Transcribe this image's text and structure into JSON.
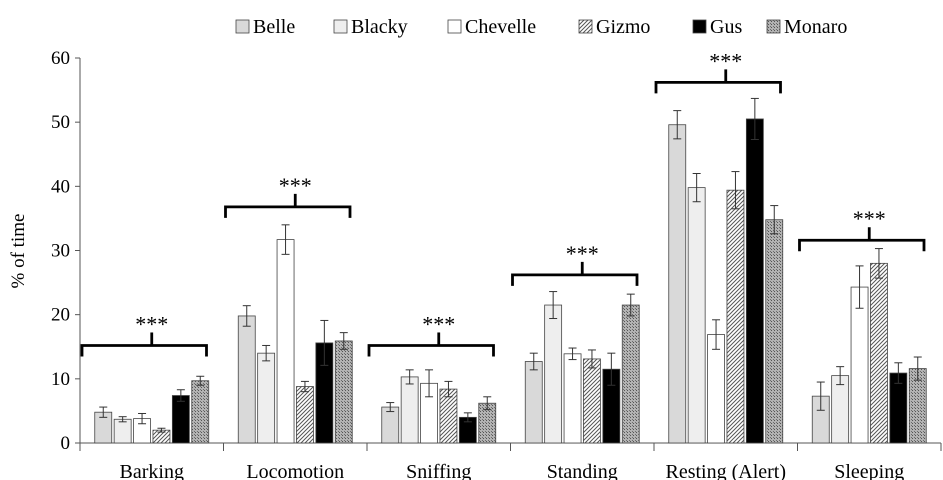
{
  "chart_data": {
    "type": "bar",
    "xlabel": "",
    "ylabel": "% of time",
    "ylim": [
      0,
      60
    ],
    "yticks": [
      0,
      10,
      20,
      30,
      40,
      50,
      60
    ],
    "grid": false,
    "legend_position": "top",
    "categories": [
      "Barking",
      "Locomotion",
      "Sniffing",
      "Standing",
      "Resting (Alert)",
      "Sleeping"
    ],
    "series": [
      {
        "name": "Belle",
        "pattern": "light-gray",
        "color": "#d9d9d9",
        "values": [
          4.8,
          19.8,
          5.6,
          12.7,
          49.6,
          7.3
        ],
        "errors": [
          0.8,
          1.6,
          0.7,
          1.3,
          2.2,
          2.2
        ]
      },
      {
        "name": "Blacky",
        "pattern": "lighter-gray",
        "color": "#eeeeee",
        "values": [
          3.7,
          14.0,
          10.3,
          21.5,
          39.8,
          10.5
        ],
        "errors": [
          0.4,
          1.2,
          1.1,
          2.1,
          2.2,
          1.4
        ]
      },
      {
        "name": "Chevelle",
        "pattern": "white",
        "color": "#ffffff",
        "values": [
          3.8,
          31.7,
          9.3,
          13.9,
          16.9,
          24.3
        ],
        "errors": [
          0.8,
          2.3,
          2.1,
          0.9,
          2.3,
          3.3
        ]
      },
      {
        "name": "Gizmo",
        "pattern": "diagonal-hatch",
        "color": "#bdbdbd",
        "values": [
          2.0,
          8.8,
          8.4,
          13.1,
          39.4,
          28.0
        ],
        "errors": [
          0.3,
          0.8,
          1.2,
          1.4,
          2.9,
          2.3
        ]
      },
      {
        "name": "Gus",
        "pattern": "black",
        "color": "#000000",
        "values": [
          7.4,
          15.6,
          4.0,
          11.5,
          50.5,
          10.9
        ],
        "errors": [
          0.9,
          3.5,
          0.7,
          2.5,
          3.2,
          1.6
        ]
      },
      {
        "name": "Monaro",
        "pattern": "dotted",
        "color": "#9e9e9e",
        "values": [
          9.7,
          15.9,
          6.2,
          21.5,
          34.8,
          11.6
        ],
        "errors": [
          0.7,
          1.3,
          1.0,
          1.7,
          2.2,
          1.8
        ]
      }
    ],
    "significance": [
      {
        "label": "***",
        "bracket_level": 15.2
      },
      {
        "label": "***",
        "bracket_level": 36.8
      },
      {
        "label": "***",
        "bracket_level": 15.2
      },
      {
        "label": "***",
        "bracket_level": 26.2
      },
      {
        "label": "***",
        "bracket_level": 56.2
      },
      {
        "label": "***",
        "bracket_level": 31.6
      }
    ]
  }
}
